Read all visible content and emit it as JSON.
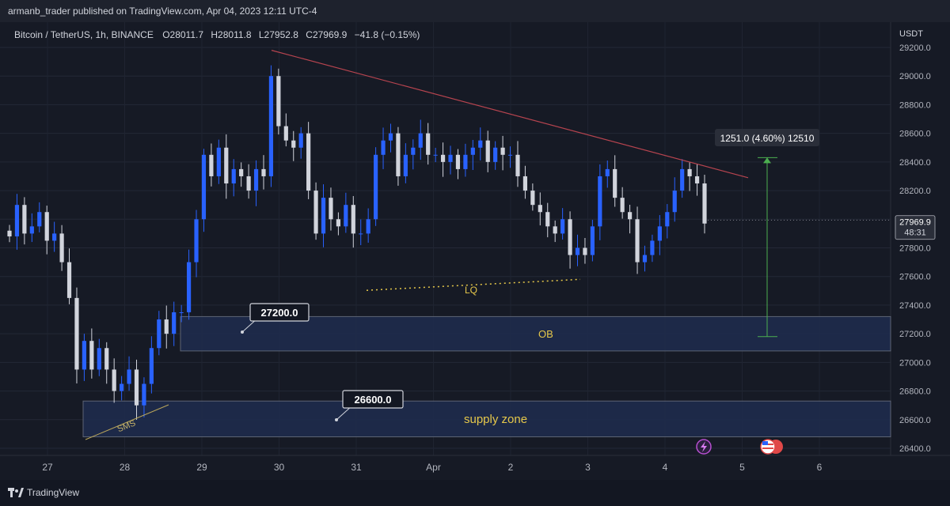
{
  "header": {
    "publisher_line": "armanb_trader published on TradingView.com, Apr 04, 2023 12:11 UTC-4"
  },
  "legend": {
    "symbol": "Bitcoin / TetherUS, 1h, BINANCE",
    "open": "O28011.7",
    "high": "H28011.8",
    "low": "L27952.8",
    "close": "C27969.9",
    "change": "−41.8 (−0.15%)"
  },
  "price_axis": {
    "currency": "USDT",
    "ticks": [
      "29200.0",
      "29000.0",
      "28800.0",
      "28600.0",
      "28400.0",
      "28200.0",
      "28000.0",
      "27800.0",
      "27600.0",
      "27400.0",
      "27200.0",
      "27000.0",
      "26800.0",
      "26600.0",
      "26400.0"
    ]
  },
  "time_axis": {
    "ticks": [
      "27",
      "28",
      "29",
      "30",
      "31",
      "Apr",
      "2",
      "3",
      "4",
      "5",
      "6"
    ]
  },
  "last_price": {
    "value": "27969.9",
    "countdown": "48:31"
  },
  "annotations": {
    "callout_ob_price": "27200.0",
    "callout_supply_price": "26600.0",
    "ob_label": "OB",
    "supply_label": "supply zone",
    "lq_label": "LQ",
    "sms_label": "SMS",
    "measure_label": "1251.0 (4.60%) 12510"
  },
  "footer": {
    "brand": "TradingView"
  },
  "colors": {
    "bull": "#2962ff",
    "bear": "#d1d4dc",
    "zone": "#1e2b4d",
    "trendline": "#b7444f",
    "measure": "#4caf50",
    "lq": "#e6c84a"
  },
  "chart_data": {
    "type": "candlestick",
    "symbol": "BTCUSDT",
    "timeframe": "1h",
    "ylim": [
      26400,
      29200
    ],
    "x_labels": [
      "27",
      "28",
      "29",
      "30",
      "31",
      "Apr",
      "2",
      "3",
      "4",
      "5",
      "6"
    ],
    "zones": [
      {
        "name": "OB",
        "from": 27080,
        "to": 27320
      },
      {
        "name": "supply zone",
        "from": 26480,
        "to": 26730
      }
    ],
    "trendline": {
      "from_price": 29180,
      "to_price": 28290
    },
    "lq_level": 27520,
    "measure": {
      "from": 27180,
      "to": 28430
    },
    "last": 27969.9,
    "closes": [
      27880,
      28100,
      27900,
      27950,
      28050,
      27850,
      27900,
      27700,
      27450,
      26950,
      27150,
      26950,
      27100,
      26950,
      26800,
      26850,
      26950,
      26700,
      26850,
      27100,
      27300,
      27200,
      27350,
      27350,
      27700,
      28000,
      28450,
      28300,
      28500,
      28250,
      28350,
      28300,
      28200,
      28350,
      28300,
      29000,
      28650,
      28550,
      28500,
      28600,
      28200,
      27900,
      28150,
      28000,
      27950,
      28100,
      27900,
      27900,
      28000,
      28450,
      28550,
      28600,
      28300,
      28450,
      28500,
      28600,
      28450,
      28450,
      28400,
      28450,
      28350,
      28450,
      28500,
      28550,
      28400,
      28500,
      28450,
      28450,
      28300,
      28200,
      28100,
      28050,
      27950,
      27900,
      28000,
      27750,
      27800,
      27750,
      27950,
      28300,
      28350,
      28150,
      28050,
      28000,
      27700,
      27750,
      27850,
      27950,
      28050,
      28200,
      28350,
      28300,
      28250,
      27969.9
    ]
  }
}
